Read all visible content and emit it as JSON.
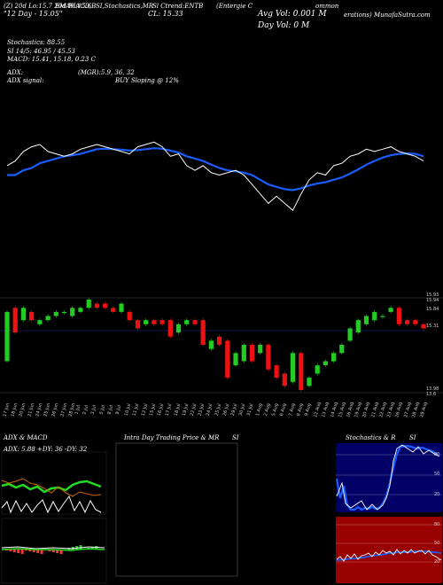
{
  "header": {
    "line1_left": "(Z) 20d Lo:15.7 20d Hi:15.6",
    "line1_ema": "EMA",
    "line1_macd": "MACD,B",
    "line1_stoch": "SI,Stochastics,MR",
    "line1_ticker": "Sl Ctrend:ENTB",
    "line1_company": "(Entergie C",
    "line1_company2": "ommon",
    "line2_left": "\"12 Day - 15.05\"",
    "line2_mid": "CL: 15.33",
    "line2_right": "erations) MunafaSutra.com",
    "avg_vol": "Avg Vol: 0.001 M",
    "day_vol": "Day Vol: 0   M",
    "stochastics": "Stochastics: 88.55",
    "si": "SI 14/5: 46.95 / 45.53",
    "macd": "MACD: 15.41, 15.18, 0.23  C",
    "adx": "ADX:",
    "adx_vals": "(MGR):5.9, 36, 32",
    "adx_signal": "ADX  signal:",
    "buy": "BUY Sloping @ 12%"
  },
  "price_axis": {
    "top1": "15.93",
    "top2": "15.94",
    "mid1": "15.84",
    "mid2": "15.31",
    "bot": "13.98",
    "bot2": "13.6"
  },
  "x_labels": [
    "17 Jun",
    "18 Jun",
    "20 Jun",
    "21 Jun",
    "24 Jun",
    "25 Jun",
    "26 Jun",
    "27 Jun",
    "28 Jun",
    "1 Jul",
    "2 Jul",
    "3 Jul",
    "5 Jul",
    "8 Jul",
    "9 Jul",
    "10 Jul",
    "11 Jul",
    "12 Jul",
    "15 Jul",
    "16 Jul",
    "17 Jul",
    "18 Jul",
    "19 Jul",
    "22 Jul",
    "23 Jul",
    "24 Jul",
    "25 Jul",
    "26 Jul",
    "29 Jul",
    "30 Jul",
    "31 Jul",
    "1 Aug",
    "2 Aug",
    "5 Aug",
    "6 Aug",
    "7 Aug",
    "8 Aug",
    "9 Aug",
    "12 Aug",
    "13 Aug",
    "14 Aug",
    "15 Aug",
    "16 Aug",
    "19 Aug",
    "20 Aug",
    "21 Aug",
    "22 Aug",
    "23 Aug",
    "26 Aug",
    "27 Aug",
    "28 Aug",
    "29 Aug"
  ],
  "panels": {
    "adx_title": "ADX  & MACD",
    "adx_sub": "ADX: 5.88  +DY: 36  -DY: 32",
    "intra_title": "Intra  Day Trading Price  & MR",
    "intra_si": "SI",
    "stoch_title": "Stochastics & R",
    "stoch_si": "SI",
    "stoch_ticks": [
      "80",
      "50",
      "20"
    ],
    "rsi_ticks": [
      "80",
      "50",
      "20"
    ]
  },
  "colors": {
    "ema_line": "#1a5cff",
    "price_line": "#ffffff",
    "up": "#22cc22",
    "down": "#ee1111",
    "stoch_bg": "#000066",
    "rsi_bg": "#990000"
  },
  "chart_data": {
    "type": "candlestick",
    "candles": [
      [
        14.6,
        15.8
      ],
      [
        15.9,
        15.3
      ],
      [
        15.6,
        15.9
      ],
      [
        15.8,
        15.6
      ],
      [
        15.5,
        15.6
      ],
      [
        15.6,
        15.7
      ],
      [
        15.7,
        15.8
      ],
      [
        15.8,
        15.8
      ],
      [
        15.7,
        15.9
      ],
      [
        15.8,
        15.9
      ],
      [
        15.9,
        16.1
      ],
      [
        16.0,
        15.9
      ],
      [
        16.0,
        15.9
      ],
      [
        15.9,
        15.8
      ],
      [
        15.8,
        16.0
      ],
      [
        15.8,
        15.6
      ],
      [
        15.6,
        15.4
      ],
      [
        15.5,
        15.6
      ],
      [
        15.6,
        15.5
      ],
      [
        15.6,
        15.5
      ],
      [
        15.6,
        15.2
      ],
      [
        15.3,
        15.5
      ],
      [
        15.5,
        15.6
      ],
      [
        15.6,
        15.5
      ],
      [
        15.6,
        15.0
      ],
      [
        14.9,
        15.1
      ],
      [
        15.2,
        15.0
      ],
      [
        15.1,
        14.2
      ],
      [
        14.5,
        14.8
      ],
      [
        14.6,
        15.0
      ],
      [
        15.0,
        14.6
      ],
      [
        14.8,
        15.0
      ],
      [
        15.0,
        14.4
      ],
      [
        14.5,
        14.2
      ],
      [
        14.3,
        14.0
      ],
      [
        14.1,
        14.8
      ],
      [
        14.8,
        13.9
      ],
      [
        14.0,
        14.2
      ],
      [
        14.3,
        14.5
      ],
      [
        14.5,
        14.6
      ],
      [
        14.6,
        14.8
      ],
      [
        14.8,
        15.0
      ],
      [
        15.1,
        15.4
      ],
      [
        15.3,
        15.6
      ],
      [
        15.5,
        15.7
      ],
      [
        15.6,
        15.8
      ],
      [
        15.7,
        15.7
      ],
      [
        15.8,
        15.9
      ],
      [
        15.9,
        15.5
      ],
      [
        15.6,
        15.5
      ],
      [
        15.6,
        15.5
      ],
      [
        15.5,
        15.4
      ]
    ],
    "price_line": [
      15.5,
      15.6,
      15.8,
      15.9,
      15.95,
      15.8,
      15.75,
      15.7,
      15.75,
      15.85,
      15.9,
      15.95,
      15.9,
      15.85,
      15.8,
      15.75,
      15.9,
      15.95,
      16.0,
      15.9,
      15.7,
      15.75,
      15.5,
      15.4,
      15.5,
      15.35,
      15.3,
      15.35,
      15.4,
      15.3,
      15.1,
      14.9,
      14.7,
      14.85,
      14.7,
      14.55,
      14.9,
      15.2,
      15.35,
      15.3,
      15.5,
      15.55,
      15.7,
      15.75,
      15.85,
      15.8,
      15.85,
      15.9,
      15.8,
      15.75,
      15.7,
      15.6
    ],
    "ema_line": [
      15.3,
      15.3,
      15.4,
      15.45,
      15.55,
      15.6,
      15.65,
      15.7,
      15.72,
      15.75,
      15.8,
      15.85,
      15.86,
      15.85,
      15.84,
      15.82,
      15.83,
      15.85,
      15.87,
      15.86,
      15.82,
      15.78,
      15.7,
      15.65,
      15.6,
      15.52,
      15.45,
      15.4,
      15.38,
      15.35,
      15.3,
      15.2,
      15.1,
      15.05,
      15.0,
      14.98,
      15.02,
      15.08,
      15.12,
      15.15,
      15.2,
      15.25,
      15.33,
      15.42,
      15.52,
      15.6,
      15.67,
      15.72,
      15.75,
      15.76,
      15.75,
      15.7
    ]
  }
}
